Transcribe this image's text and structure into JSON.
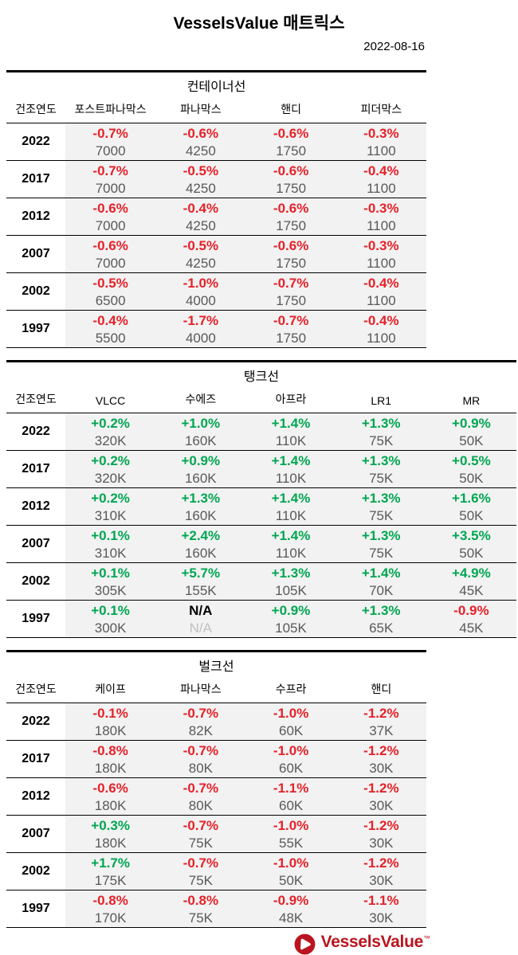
{
  "header": {
    "title": "VesselsValue 매트릭스",
    "date": "2022-08-16"
  },
  "year_column_header": "건조연도",
  "colors": {
    "negative": "#e62129",
    "positive": "#00a651",
    "size_gray": "#595959",
    "na_muted": "#bfbfbf",
    "cell_bg": "#f2f2f2",
    "logo_red": "#ba141e"
  },
  "tables": [
    {
      "id": "container-ships",
      "title": "컨테이너선",
      "columns": [
        "포스트파나막스",
        "파나막스",
        "핸디",
        "피더막스"
      ],
      "rows": [
        {
          "year": "2022",
          "cells": [
            {
              "pct": "-0.7%",
              "trend": "down",
              "size": "7000"
            },
            {
              "pct": "-0.6%",
              "trend": "down",
              "size": "4250"
            },
            {
              "pct": "-0.6%",
              "trend": "down",
              "size": "1750"
            },
            {
              "pct": "-0.3%",
              "trend": "down",
              "size": "1100"
            }
          ]
        },
        {
          "year": "2017",
          "cells": [
            {
              "pct": "-0.7%",
              "trend": "down",
              "size": "7000"
            },
            {
              "pct": "-0.5%",
              "trend": "down",
              "size": "4250"
            },
            {
              "pct": "-0.6%",
              "trend": "down",
              "size": "1750"
            },
            {
              "pct": "-0.4%",
              "trend": "down",
              "size": "1100"
            }
          ]
        },
        {
          "year": "2012",
          "cells": [
            {
              "pct": "-0.6%",
              "trend": "down",
              "size": "7000"
            },
            {
              "pct": "-0.4%",
              "trend": "down",
              "size": "4250"
            },
            {
              "pct": "-0.6%",
              "trend": "down",
              "size": "1750"
            },
            {
              "pct": "-0.3%",
              "trend": "down",
              "size": "1100"
            }
          ]
        },
        {
          "year": "2007",
          "cells": [
            {
              "pct": "-0.6%",
              "trend": "down",
              "size": "7000"
            },
            {
              "pct": "-0.5%",
              "trend": "down",
              "size": "4250"
            },
            {
              "pct": "-0.6%",
              "trend": "down",
              "size": "1750"
            },
            {
              "pct": "-0.3%",
              "trend": "down",
              "size": "1100"
            }
          ]
        },
        {
          "year": "2002",
          "cells": [
            {
              "pct": "-0.5%",
              "trend": "down",
              "size": "6500"
            },
            {
              "pct": "-1.0%",
              "trend": "down",
              "size": "4000"
            },
            {
              "pct": "-0.7%",
              "trend": "down",
              "size": "1750"
            },
            {
              "pct": "-0.4%",
              "trend": "down",
              "size": "1100"
            }
          ]
        },
        {
          "year": "1997",
          "cells": [
            {
              "pct": "-0.4%",
              "trend": "down",
              "size": "5500"
            },
            {
              "pct": "-1.7%",
              "trend": "down",
              "size": "4000"
            },
            {
              "pct": "-0.7%",
              "trend": "down",
              "size": "1750"
            },
            {
              "pct": "-0.4%",
              "trend": "down",
              "size": "1100"
            }
          ]
        }
      ]
    },
    {
      "id": "tankers",
      "title": "탱크선",
      "columns": [
        "VLCC",
        "수에즈",
        "아프라",
        "LR1",
        "MR"
      ],
      "rows": [
        {
          "year": "2022",
          "cells": [
            {
              "pct": "+0.2%",
              "trend": "up",
              "size": "320K"
            },
            {
              "pct": "+1.0%",
              "trend": "up",
              "size": "160K"
            },
            {
              "pct": "+1.4%",
              "trend": "up",
              "size": "110K"
            },
            {
              "pct": "+1.3%",
              "trend": "up",
              "size": "75K"
            },
            {
              "pct": "+0.9%",
              "trend": "up",
              "size": "50K"
            }
          ]
        },
        {
          "year": "2017",
          "cells": [
            {
              "pct": "+0.2%",
              "trend": "up",
              "size": "320K"
            },
            {
              "pct": "+0.9%",
              "trend": "up",
              "size": "160K"
            },
            {
              "pct": "+1.4%",
              "trend": "up",
              "size": "110K"
            },
            {
              "pct": "+1.3%",
              "trend": "up",
              "size": "75K"
            },
            {
              "pct": "+0.5%",
              "trend": "up",
              "size": "50K"
            }
          ]
        },
        {
          "year": "2012",
          "cells": [
            {
              "pct": "+0.2%",
              "trend": "up",
              "size": "310K"
            },
            {
              "pct": "+1.3%",
              "trend": "up",
              "size": "160K"
            },
            {
              "pct": "+1.4%",
              "trend": "up",
              "size": "110K"
            },
            {
              "pct": "+1.3%",
              "trend": "up",
              "size": "75K"
            },
            {
              "pct": "+1.6%",
              "trend": "up",
              "size": "50K"
            }
          ]
        },
        {
          "year": "2007",
          "cells": [
            {
              "pct": "+0.1%",
              "trend": "up",
              "size": "310K"
            },
            {
              "pct": "+2.4%",
              "trend": "up",
              "size": "160K"
            },
            {
              "pct": "+1.4%",
              "trend": "up",
              "size": "110K"
            },
            {
              "pct": "+1.3%",
              "trend": "up",
              "size": "75K"
            },
            {
              "pct": "+3.5%",
              "trend": "up",
              "size": "50K"
            }
          ]
        },
        {
          "year": "2002",
          "cells": [
            {
              "pct": "+0.1%",
              "trend": "up",
              "size": "305K"
            },
            {
              "pct": "+5.7%",
              "trend": "up",
              "size": "155K"
            },
            {
              "pct": "+1.3%",
              "trend": "up",
              "size": "105K"
            },
            {
              "pct": "+1.4%",
              "trend": "up",
              "size": "70K"
            },
            {
              "pct": "+4.9%",
              "trend": "up",
              "size": "45K"
            }
          ]
        },
        {
          "year": "1997",
          "cells": [
            {
              "pct": "+0.1%",
              "trend": "up",
              "size": "300K"
            },
            {
              "pct": "N/A",
              "trend": "na",
              "size": "N/A",
              "size_na": true
            },
            {
              "pct": "+0.9%",
              "trend": "up",
              "size": "105K"
            },
            {
              "pct": "+1.3%",
              "trend": "up",
              "size": "65K"
            },
            {
              "pct": "-0.9%",
              "trend": "down",
              "size": "45K"
            }
          ]
        }
      ]
    },
    {
      "id": "bulkers",
      "title": "벌크선",
      "columns": [
        "케이프",
        "파나막스",
        "수프라",
        "핸디"
      ],
      "rows": [
        {
          "year": "2022",
          "cells": [
            {
              "pct": "-0.1%",
              "trend": "down",
              "size": "180K"
            },
            {
              "pct": "-0.7%",
              "trend": "down",
              "size": "82K"
            },
            {
              "pct": "-1.0%",
              "trend": "down",
              "size": "60K"
            },
            {
              "pct": "-1.2%",
              "trend": "down",
              "size": "37K"
            }
          ]
        },
        {
          "year": "2017",
          "cells": [
            {
              "pct": "-0.8%",
              "trend": "down",
              "size": "180K"
            },
            {
              "pct": "-0.7%",
              "trend": "down",
              "size": "80K"
            },
            {
              "pct": "-1.0%",
              "trend": "down",
              "size": "60K"
            },
            {
              "pct": "-1.2%",
              "trend": "down",
              "size": "30K"
            }
          ]
        },
        {
          "year": "2012",
          "cells": [
            {
              "pct": "-0.6%",
              "trend": "down",
              "size": "180K"
            },
            {
              "pct": "-0.7%",
              "trend": "down",
              "size": "80K"
            },
            {
              "pct": "-1.1%",
              "trend": "down",
              "size": "60K"
            },
            {
              "pct": "-1.2%",
              "trend": "down",
              "size": "30K"
            }
          ]
        },
        {
          "year": "2007",
          "cells": [
            {
              "pct": "+0.3%",
              "trend": "up",
              "size": "180K"
            },
            {
              "pct": "-0.7%",
              "trend": "down",
              "size": "75K"
            },
            {
              "pct": "-1.0%",
              "trend": "down",
              "size": "55K"
            },
            {
              "pct": "-1.2%",
              "trend": "down",
              "size": "30K"
            }
          ]
        },
        {
          "year": "2002",
          "cells": [
            {
              "pct": "+1.7%",
              "trend": "up",
              "size": "175K"
            },
            {
              "pct": "-0.7%",
              "trend": "down",
              "size": "75K"
            },
            {
              "pct": "-1.0%",
              "trend": "down",
              "size": "50K"
            },
            {
              "pct": "-1.2%",
              "trend": "down",
              "size": "30K"
            }
          ]
        },
        {
          "year": "1997",
          "cells": [
            {
              "pct": "-0.8%",
              "trend": "down",
              "size": "170K"
            },
            {
              "pct": "-0.8%",
              "trend": "down",
              "size": "75K"
            },
            {
              "pct": "-0.9%",
              "trend": "down",
              "size": "48K"
            },
            {
              "pct": "-1.1%",
              "trend": "down",
              "size": "30K"
            }
          ]
        }
      ]
    }
  ],
  "footer": {
    "brand": "VesselsValue",
    "trademark": "™"
  }
}
